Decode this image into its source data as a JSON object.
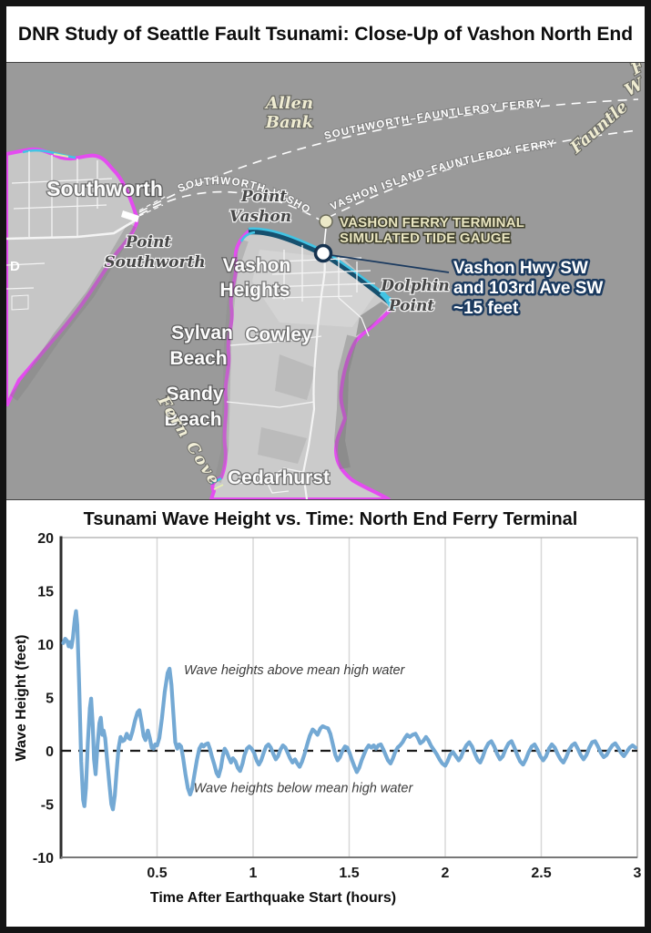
{
  "frame": {
    "title": "DNR Study of Seattle Fault Tsunami: Close-Up of Vashon North End"
  },
  "map": {
    "labels": {
      "allen_bank": [
        "Allen",
        "Bank"
      ],
      "fauntleroy_fragment": "Fauntle",
      "corner_fragments": [
        "F",
        "W"
      ],
      "southworth": "Southworth",
      "point_southworth": [
        "Point",
        "Southworth"
      ],
      "point_vashon": [
        "Point",
        "Vashon"
      ],
      "vashon_heights": [
        "Vashon",
        "Heights"
      ],
      "dolphin_point": [
        "Dolphin",
        "Point"
      ],
      "cowley": "Cowley",
      "sylvan_beach": [
        "Sylvan",
        "Beach"
      ],
      "sandy_beach": [
        "Sandy",
        "Beach"
      ],
      "fern_cove": "Fern Cove",
      "cedarhurst": "Cedarhurst",
      "road_fragment": "D"
    },
    "routes": {
      "southworth_fauntleroy": "SOUTHWORTH–FAUNTLEROY FERRY",
      "vashon_fauntleroy": "VASHON ISLAND–FAUNTLEROY FERRY",
      "southworth_vashon": "SOUTHWORTH–VASHON IS"
    },
    "gauge_label": [
      "VASHON FERRY TERMINAL",
      "SIMULATED TIDE GAUGE"
    ],
    "callout_lines": [
      "Vashon Hwy SW",
      "and 103rd Ave SW",
      "~15 feet"
    ],
    "colors": {
      "water": "#9a9a9a",
      "land": "#c8c8c8",
      "inundation_magenta": "#e44cf0",
      "inundation_cyan": "#41c4e4",
      "deep_teal": "#16506e",
      "gauge_ring": "#16324f",
      "callout_navy": "#1b3a5f",
      "cream": "#ece9c8"
    }
  },
  "chart_data": {
    "type": "line",
    "title": "Tsunami Wave Height vs. Time: North End Ferry Terminal",
    "xlabel": "Time After Earthquake Start (hours)",
    "ylabel": "Wave Height (feet)",
    "xlim": [
      0,
      3
    ],
    "ylim": [
      -10,
      20
    ],
    "x_ticks": [
      0.5,
      1,
      1.5,
      2,
      2.5,
      3
    ],
    "y_ticks": [
      20,
      15,
      10,
      5,
      0,
      -5,
      -10
    ],
    "grid": "vertical",
    "zero_line": true,
    "line_color": "#74a9d4",
    "annotations": [
      {
        "text": "Wave heights above mean high water",
        "t": 0.64,
        "ft": 7.2
      },
      {
        "text": "Wave heights below mean high water",
        "t": 0.69,
        "ft": -3.9
      }
    ],
    "samples": [
      [
        0.012,
        10.1
      ],
      [
        0.022,
        10.5
      ],
      [
        0.032,
        10.3
      ],
      [
        0.04,
        9.8
      ],
      [
        0.048,
        10.2
      ],
      [
        0.054,
        9.7
      ],
      [
        0.062,
        10.6
      ],
      [
        0.072,
        12.4
      ],
      [
        0.078,
        13.1
      ],
      [
        0.085,
        11.8
      ],
      [
        0.095,
        6.0
      ],
      [
        0.105,
        -1.0
      ],
      [
        0.115,
        -4.6
      ],
      [
        0.122,
        -5.2
      ],
      [
        0.13,
        -3.5
      ],
      [
        0.14,
        0.8
      ],
      [
        0.15,
        4.0
      ],
      [
        0.157,
        4.9
      ],
      [
        0.165,
        2.5
      ],
      [
        0.172,
        -0.8
      ],
      [
        0.18,
        -2.2
      ],
      [
        0.19,
        0.5
      ],
      [
        0.2,
        2.6
      ],
      [
        0.207,
        3.1
      ],
      [
        0.215,
        1.5
      ],
      [
        0.222,
        1.9
      ],
      [
        0.23,
        1.2
      ],
      [
        0.24,
        -0.8
      ],
      [
        0.252,
        -3.2
      ],
      [
        0.262,
        -5.0
      ],
      [
        0.27,
        -5.5
      ],
      [
        0.28,
        -4.2
      ],
      [
        0.29,
        -1.8
      ],
      [
        0.3,
        0.3
      ],
      [
        0.31,
        1.3
      ],
      [
        0.32,
        0.9
      ],
      [
        0.33,
        1.0
      ],
      [
        0.342,
        1.6
      ],
      [
        0.352,
        1.2
      ],
      [
        0.36,
        1.1
      ],
      [
        0.372,
        1.8
      ],
      [
        0.385,
        2.8
      ],
      [
        0.398,
        3.6
      ],
      [
        0.408,
        3.8
      ],
      [
        0.42,
        2.6
      ],
      [
        0.43,
        1.4
      ],
      [
        0.44,
        1.0
      ],
      [
        0.452,
        1.9
      ],
      [
        0.462,
        1.2
      ],
      [
        0.472,
        0.3
      ],
      [
        0.482,
        0.2
      ],
      [
        0.49,
        0.6
      ],
      [
        0.5,
        0.5
      ],
      [
        0.512,
        1.2
      ],
      [
        0.525,
        3.0
      ],
      [
        0.54,
        5.5
      ],
      [
        0.555,
        7.3
      ],
      [
        0.565,
        7.7
      ],
      [
        0.575,
        6.2
      ],
      [
        0.585,
        3.5
      ],
      [
        0.595,
        0.8
      ],
      [
        0.605,
        0.2
      ],
      [
        0.615,
        0.6
      ],
      [
        0.625,
        0.4
      ],
      [
        0.635,
        -0.6
      ],
      [
        0.648,
        -2.2
      ],
      [
        0.66,
        -3.5
      ],
      [
        0.672,
        -4.1
      ],
      [
        0.682,
        -3.6
      ],
      [
        0.695,
        -2.2
      ],
      [
        0.708,
        -0.8
      ],
      [
        0.72,
        0.2
      ],
      [
        0.732,
        0.6
      ],
      [
        0.742,
        0.4
      ],
      [
        0.752,
        0.6
      ],
      [
        0.765,
        0.7
      ],
      [
        0.775,
        0.2
      ],
      [
        0.785,
        -0.5
      ],
      [
        0.798,
        -1.3
      ],
      [
        0.81,
        -2.1
      ],
      [
        0.82,
        -2.4
      ],
      [
        0.832,
        -1.6
      ],
      [
        0.842,
        -0.5
      ],
      [
        0.852,
        0.2
      ],
      [
        0.862,
        -0.1
      ],
      [
        0.875,
        -0.7
      ],
      [
        0.885,
        -1.1
      ],
      [
        0.895,
        -0.7
      ],
      [
        0.908,
        -1.0
      ],
      [
        0.92,
        -1.6
      ],
      [
        0.932,
        -1.9
      ],
      [
        0.945,
        -1.2
      ],
      [
        0.955,
        -0.4
      ],
      [
        0.968,
        0.2
      ],
      [
        0.98,
        0.4
      ],
      [
        0.992,
        0.2
      ],
      [
        1.005,
        -0.2
      ],
      [
        1.018,
        -0.9
      ],
      [
        1.03,
        -1.3
      ],
      [
        1.042,
        -0.9
      ],
      [
        1.055,
        -0.2
      ],
      [
        1.068,
        0.4
      ],
      [
        1.08,
        0.6
      ],
      [
        1.092,
        0.3
      ],
      [
        1.105,
        -0.3
      ],
      [
        1.118,
        -0.8
      ],
      [
        1.13,
        -0.5
      ],
      [
        1.142,
        0.1
      ],
      [
        1.155,
        0.5
      ],
      [
        1.168,
        0.3
      ],
      [
        1.18,
        -0.2
      ],
      [
        1.192,
        -0.7
      ],
      [
        1.205,
        -1.1
      ],
      [
        1.218,
        -0.8
      ],
      [
        1.23,
        -1.2
      ],
      [
        1.242,
        -1.5
      ],
      [
        1.255,
        -1.0
      ],
      [
        1.268,
        -0.3
      ],
      [
        1.28,
        0.5
      ],
      [
        1.295,
        1.4
      ],
      [
        1.31,
        2.0
      ],
      [
        1.322,
        1.8
      ],
      [
        1.335,
        1.5
      ],
      [
        1.35,
        2.1
      ],
      [
        1.362,
        2.3
      ],
      [
        1.375,
        2.2
      ],
      [
        1.39,
        2.1
      ],
      [
        1.402,
        1.6
      ],
      [
        1.415,
        0.6
      ],
      [
        1.428,
        -0.4
      ],
      [
        1.44,
        -0.9
      ],
      [
        1.452,
        -0.6
      ],
      [
        1.465,
        0.0
      ],
      [
        1.478,
        0.4
      ],
      [
        1.49,
        0.3
      ],
      [
        1.502,
        -0.2
      ],
      [
        1.515,
        -0.9
      ],
      [
        1.528,
        -1.5
      ],
      [
        1.54,
        -2.0
      ],
      [
        1.552,
        -1.6
      ],
      [
        1.565,
        -0.9
      ],
      [
        1.578,
        -0.3
      ],
      [
        1.59,
        0.2
      ],
      [
        1.602,
        0.5
      ],
      [
        1.615,
        0.3
      ],
      [
        1.628,
        0.5
      ],
      [
        1.64,
        0.2
      ],
      [
        1.652,
        0.5
      ],
      [
        1.665,
        0.6
      ],
      [
        1.678,
        0.1
      ],
      [
        1.69,
        -0.4
      ],
      [
        1.702,
        -0.9
      ],
      [
        1.715,
        -1.2
      ],
      [
        1.728,
        -0.7
      ],
      [
        1.74,
        -0.1
      ],
      [
        1.752,
        0.3
      ],
      [
        1.765,
        0.5
      ],
      [
        1.778,
        0.8
      ],
      [
        1.79,
        1.2
      ],
      [
        1.802,
        1.5
      ],
      [
        1.815,
        1.3
      ],
      [
        1.83,
        1.5
      ],
      [
        1.845,
        1.6
      ],
      [
        1.858,
        1.2
      ],
      [
        1.87,
        0.7
      ],
      [
        1.885,
        0.9
      ],
      [
        1.9,
        1.3
      ],
      [
        1.912,
        1.0
      ],
      [
        1.925,
        0.5
      ],
      [
        1.94,
        0.1
      ],
      [
        1.955,
        -0.3
      ],
      [
        1.97,
        -0.8
      ],
      [
        1.985,
        -1.2
      ],
      [
        2.0,
        -1.4
      ],
      [
        2.012,
        -1.0
      ],
      [
        2.025,
        -0.4
      ],
      [
        2.04,
        -0.1
      ],
      [
        2.055,
        -0.5
      ],
      [
        2.07,
        -0.9
      ],
      [
        2.082,
        -0.6
      ],
      [
        2.095,
        0.0
      ],
      [
        2.11,
        0.5
      ],
      [
        2.125,
        0.8
      ],
      [
        2.14,
        0.4
      ],
      [
        2.155,
        -0.3
      ],
      [
        2.17,
        -0.9
      ],
      [
        2.182,
        -1.1
      ],
      [
        2.195,
        -0.6
      ],
      [
        2.21,
        0.2
      ],
      [
        2.225,
        0.7
      ],
      [
        2.24,
        0.9
      ],
      [
        2.255,
        0.4
      ],
      [
        2.27,
        -0.3
      ],
      [
        2.285,
        -0.8
      ],
      [
        2.3,
        -0.5
      ],
      [
        2.315,
        0.2
      ],
      [
        2.33,
        0.7
      ],
      [
        2.345,
        0.9
      ],
      [
        2.36,
        0.3
      ],
      [
        2.375,
        -0.4
      ],
      [
        2.39,
        -1.0
      ],
      [
        2.405,
        -1.3
      ],
      [
        2.42,
        -0.8
      ],
      [
        2.435,
        -0.1
      ],
      [
        2.45,
        0.4
      ],
      [
        2.465,
        0.6
      ],
      [
        2.48,
        0.1
      ],
      [
        2.495,
        -0.5
      ],
      [
        2.51,
        -0.9
      ],
      [
        2.525,
        -0.5
      ],
      [
        2.54,
        0.2
      ],
      [
        2.555,
        0.6
      ],
      [
        2.57,
        0.3
      ],
      [
        2.585,
        -0.3
      ],
      [
        2.6,
        -0.8
      ],
      [
        2.615,
        -1.1
      ],
      [
        2.63,
        -0.6
      ],
      [
        2.645,
        0.1
      ],
      [
        2.66,
        0.5
      ],
      [
        2.675,
        0.7
      ],
      [
        2.69,
        0.2
      ],
      [
        2.705,
        -0.4
      ],
      [
        2.72,
        -0.8
      ],
      [
        2.735,
        -0.4
      ],
      [
        2.75,
        0.3
      ],
      [
        2.765,
        0.8
      ],
      [
        2.78,
        0.9
      ],
      [
        2.795,
        0.4
      ],
      [
        2.81,
        -0.2
      ],
      [
        2.825,
        -0.6
      ],
      [
        2.84,
        -0.4
      ],
      [
        2.855,
        0.1
      ],
      [
        2.87,
        0.5
      ],
      [
        2.885,
        0.7
      ],
      [
        2.9,
        0.3
      ],
      [
        2.915,
        -0.2
      ],
      [
        2.93,
        -0.5
      ],
      [
        2.945,
        -0.1
      ],
      [
        2.96,
        0.3
      ],
      [
        2.975,
        0.5
      ],
      [
        2.99,
        0.3
      ]
    ]
  }
}
